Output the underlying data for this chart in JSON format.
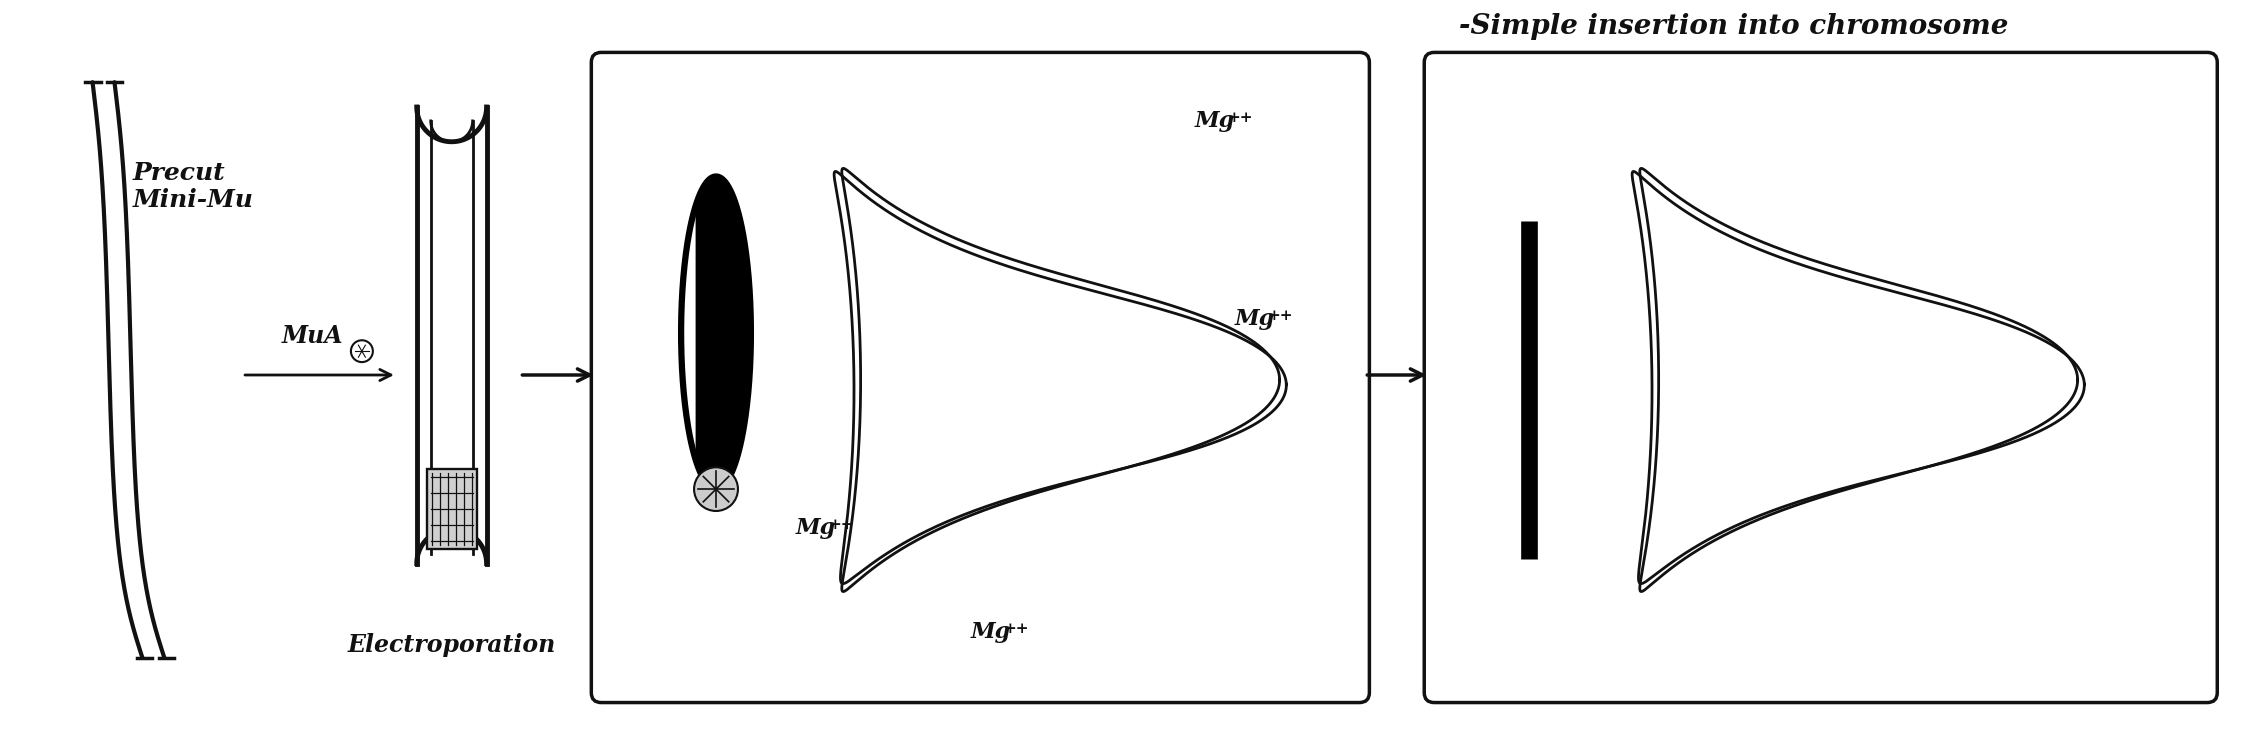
{
  "bg_color": "#ffffff",
  "title_text": "-Simple insertion into chromosome",
  "title_fontsize": 20,
  "label_precut": "Precut\nMini-Mu",
  "label_mua": "MuA",
  "label_electroporation": "Electroporation",
  "mg_labels": [
    "Mg",
    "Mg",
    "Mg",
    "Mg"
  ],
  "line_color": "#111111",
  "line_width": 2.0
}
